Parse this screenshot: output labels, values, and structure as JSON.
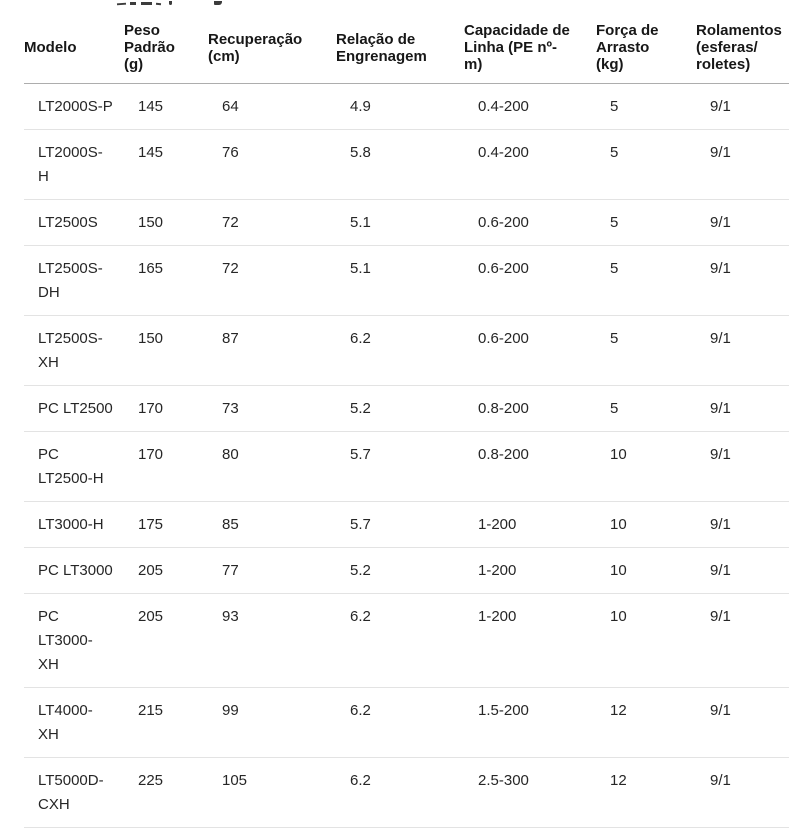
{
  "colors": {
    "background": "#ffffff",
    "header_text": "#171717",
    "body_text": "#262626",
    "header_border": "#adadad",
    "row_border": "#e3e3e3"
  },
  "table": {
    "columns": [
      {
        "id": "modelo",
        "label": "Modelo"
      },
      {
        "id": "peso",
        "label": "Peso\nPadrão\n(g)"
      },
      {
        "id": "recuperacao",
        "label": "Recuperação\n(cm)"
      },
      {
        "id": "relacao",
        "label": "Relação de\nEngrenagem"
      },
      {
        "id": "capacidade",
        "label": "Capacidade de\nLinha (PE nº-\nm)"
      },
      {
        "id": "forca",
        "label": "Força de\nArrasto\n(kg)"
      },
      {
        "id": "rolamentos",
        "label": "Rolamentos\n(esferas/\nroletes)"
      }
    ],
    "rows": [
      {
        "modelo": "LT2000S-P",
        "peso": "145",
        "recuperacao": "64",
        "relacao": "4.9",
        "capacidade": "0.4-200",
        "forca": "5",
        "rolamentos": "9/1"
      },
      {
        "modelo": "LT2000S-\nH",
        "peso": "145",
        "recuperacao": "76",
        "relacao": "5.8",
        "capacidade": "0.4-200",
        "forca": "5",
        "rolamentos": "9/1"
      },
      {
        "modelo": "LT2500S",
        "peso": "150",
        "recuperacao": "72",
        "relacao": "5.1",
        "capacidade": "0.6-200",
        "forca": "5",
        "rolamentos": "9/1"
      },
      {
        "modelo": "LT2500S-\nDH",
        "peso": "165",
        "recuperacao": "72",
        "relacao": "5.1",
        "capacidade": "0.6-200",
        "forca": "5",
        "rolamentos": "9/1"
      },
      {
        "modelo": "LT2500S-\nXH",
        "peso": "150",
        "recuperacao": "87",
        "relacao": "6.2",
        "capacidade": "0.6-200",
        "forca": "5",
        "rolamentos": "9/1"
      },
      {
        "modelo": "PC LT2500",
        "peso": "170",
        "recuperacao": "73",
        "relacao": "5.2",
        "capacidade": "0.8-200",
        "forca": "5",
        "rolamentos": "9/1"
      },
      {
        "modelo": "PC\nLT2500-H",
        "peso": "170",
        "recuperacao": "80",
        "relacao": "5.7",
        "capacidade": "0.8-200",
        "forca": "10",
        "rolamentos": "9/1"
      },
      {
        "modelo": "LT3000-H",
        "peso": "175",
        "recuperacao": "85",
        "relacao": "5.7",
        "capacidade": "1-200",
        "forca": "10",
        "rolamentos": "9/1"
      },
      {
        "modelo": "PC LT3000",
        "peso": "205",
        "recuperacao": "77",
        "relacao": "5.2",
        "capacidade": "1-200",
        "forca": "10",
        "rolamentos": "9/1"
      },
      {
        "modelo": "PC\nLT3000-\nXH",
        "peso": "205",
        "recuperacao": "93",
        "relacao": "6.2",
        "capacidade": "1-200",
        "forca": "10",
        "rolamentos": "9/1"
      },
      {
        "modelo": "LT4000-\nXH",
        "peso": "215",
        "recuperacao": "99",
        "relacao": "6.2",
        "capacidade": "1.5-200",
        "forca": "12",
        "rolamentos": "9/1"
      },
      {
        "modelo": "LT5000D-\nCXH",
        "peso": "225",
        "recuperacao": "105",
        "relacao": "6.2",
        "capacidade": "2.5-300",
        "forca": "12",
        "rolamentos": "9/1"
      }
    ]
  }
}
